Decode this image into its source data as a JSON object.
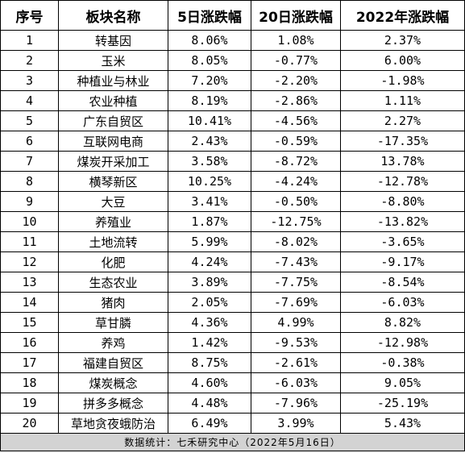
{
  "header": {
    "seq": "序号",
    "sector": "板块名称",
    "d5": "5日涨跌幅",
    "d20": "20日涨跌幅",
    "y2022": "2022年涨跌幅"
  },
  "rows": [
    {
      "seq": "1",
      "name": "转基因",
      "d5": "8.06%",
      "d20": "1.08%",
      "y2022": "2.37%"
    },
    {
      "seq": "2",
      "name": "玉米",
      "d5": "8.05%",
      "d20": "-0.77%",
      "y2022": "6.00%"
    },
    {
      "seq": "3",
      "name": "种植业与林业",
      "d5": "7.20%",
      "d20": "-2.20%",
      "y2022": "-1.98%"
    },
    {
      "seq": "4",
      "name": "农业种植",
      "d5": "8.19%",
      "d20": "-2.86%",
      "y2022": "1.11%"
    },
    {
      "seq": "5",
      "name": "广东自贸区",
      "d5": "10.41%",
      "d20": "-4.56%",
      "y2022": "2.27%"
    },
    {
      "seq": "6",
      "name": "互联网电商",
      "d5": "2.43%",
      "d20": "-0.59%",
      "y2022": "-17.35%"
    },
    {
      "seq": "7",
      "name": "煤炭开采加工",
      "d5": "3.58%",
      "d20": "-8.72%",
      "y2022": "13.78%"
    },
    {
      "seq": "8",
      "name": "横琴新区",
      "d5": "10.25%",
      "d20": "-4.24%",
      "y2022": "-12.78%"
    },
    {
      "seq": "9",
      "name": "大豆",
      "d5": "3.41%",
      "d20": "-0.50%",
      "y2022": "-8.80%"
    },
    {
      "seq": "10",
      "name": "养殖业",
      "d5": "1.87%",
      "d20": "-12.75%",
      "y2022": "-13.82%"
    },
    {
      "seq": "11",
      "name": "土地流转",
      "d5": "5.99%",
      "d20": "-8.02%",
      "y2022": "-3.65%"
    },
    {
      "seq": "12",
      "name": "化肥",
      "d5": "4.24%",
      "d20": "-7.43%",
      "y2022": "-9.17%"
    },
    {
      "seq": "13",
      "name": "生态农业",
      "d5": "3.89%",
      "d20": "-7.75%",
      "y2022": "-8.54%"
    },
    {
      "seq": "14",
      "name": "猪肉",
      "d5": "2.05%",
      "d20": "-7.69%",
      "y2022": "-6.03%"
    },
    {
      "seq": "15",
      "name": "草甘膦",
      "d5": "4.36%",
      "d20": "4.99%",
      "y2022": "8.82%"
    },
    {
      "seq": "16",
      "name": "养鸡",
      "d5": "1.42%",
      "d20": "-9.53%",
      "y2022": "-12.98%"
    },
    {
      "seq": "17",
      "name": "福建自贸区",
      "d5": "8.75%",
      "d20": "-2.61%",
      "y2022": "-0.38%"
    },
    {
      "seq": "18",
      "name": "煤炭概念",
      "d5": "4.60%",
      "d20": "-6.03%",
      "y2022": "9.05%"
    },
    {
      "seq": "19",
      "name": "拼多多概念",
      "d5": "4.48%",
      "d20": "-7.96%",
      "y2022": "-25.19%"
    },
    {
      "seq": "20",
      "name": "草地贪夜蛾防治",
      "d5": "6.49%",
      "d20": "3.99%",
      "y2022": "5.43%"
    }
  ],
  "footer": "数据统计：七禾研究中心（2022年5月16日）"
}
